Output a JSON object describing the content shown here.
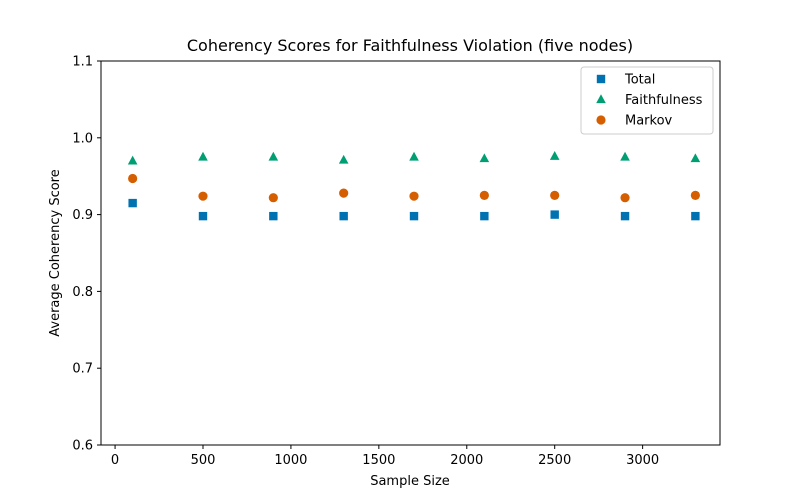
{
  "chart_data": {
    "type": "scatter",
    "title": "Coherency Scores for Faithfulness Violation (five nodes)",
    "xlabel": "Sample Size",
    "ylabel": "Average Coherency Score",
    "xlim": [
      -80,
      3440
    ],
    "ylim": [
      0.6,
      1.1
    ],
    "xticks": [
      0,
      500,
      1000,
      1500,
      2000,
      2500,
      3000
    ],
    "yticks": [
      0.6,
      0.7,
      0.8,
      0.9,
      1.0,
      1.1
    ],
    "xtick_labels": [
      "0",
      "500",
      "1000",
      "1500",
      "2000",
      "2500",
      "3000"
    ],
    "ytick_labels": [
      "0.6",
      "0.7",
      "0.8",
      "0.9",
      "1.0",
      "1.1"
    ],
    "grid": false,
    "legend_position": "top-right",
    "x": [
      100,
      500,
      900,
      1300,
      1700,
      2100,
      2500,
      2900,
      3300
    ],
    "series": [
      {
        "name": "Total",
        "marker": "square",
        "color": "#0072b2",
        "values": [
          0.915,
          0.898,
          0.898,
          0.898,
          0.898,
          0.898,
          0.9,
          0.898,
          0.898
        ]
      },
      {
        "name": "Faithfulness",
        "marker": "triangle",
        "color": "#009e73",
        "values": [
          0.97,
          0.975,
          0.975,
          0.971,
          0.975,
          0.973,
          0.976,
          0.975,
          0.973
        ]
      },
      {
        "name": "Markov",
        "marker": "circle",
        "color": "#d55e00",
        "values": [
          0.947,
          0.924,
          0.922,
          0.928,
          0.924,
          0.925,
          0.925,
          0.922,
          0.925
        ]
      }
    ]
  }
}
